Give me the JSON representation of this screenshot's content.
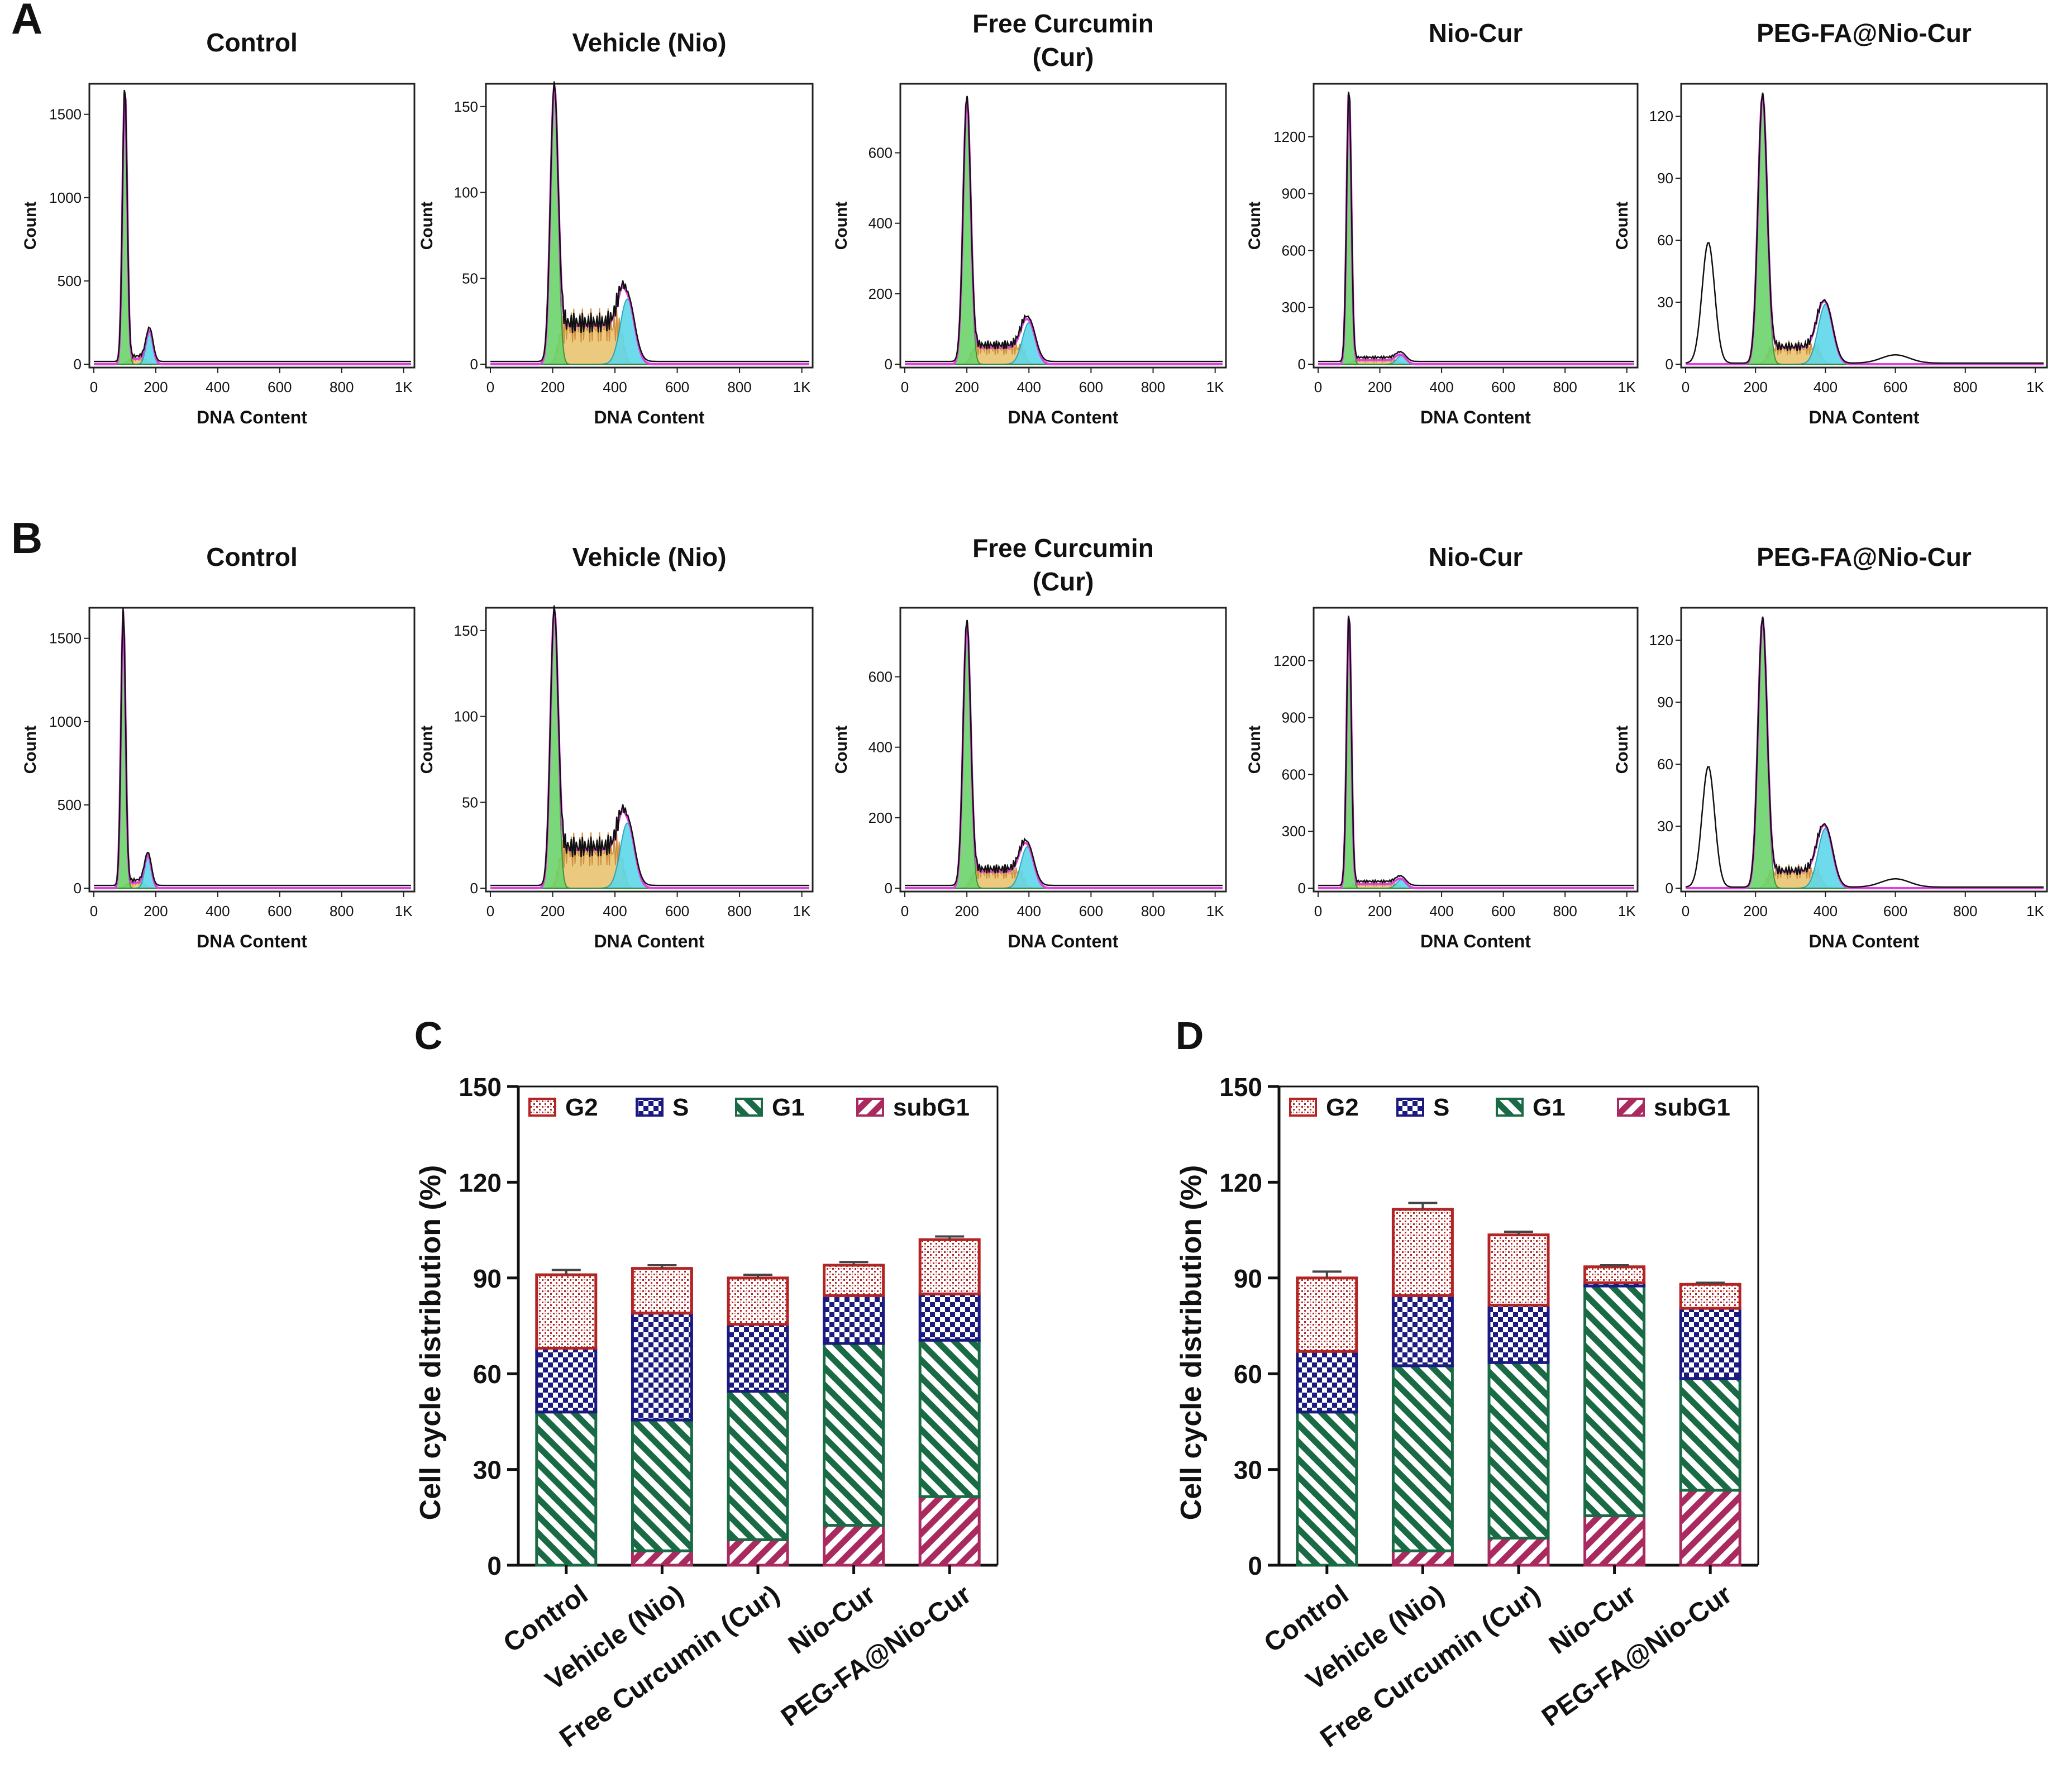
{
  "figure": {
    "panel_labels": [
      "A",
      "B",
      "C",
      "D"
    ]
  },
  "flow_rows": [
    {
      "label": "A",
      "panels": [
        {
          "title": [
            "Control"
          ],
          "yticks": [
            "0",
            "500",
            "1000",
            "1500"
          ],
          "ymax": 1650,
          "g1": 100,
          "g1h": 1660,
          "g2": 180,
          "g2h": 195,
          "s_level": 0.02,
          "sub": 0
        },
        {
          "title": [
            "Vehicle (Nio)"
          ],
          "yticks": [
            "0",
            "50",
            "100",
            "150"
          ],
          "ymax": 160,
          "g1": 205,
          "g1h": 160,
          "g2": 440,
          "g2h": 38,
          "s_level": 0.14,
          "sub": 0
        },
        {
          "title": [
            "Free Curcumin",
            "(Cur)"
          ],
          "yticks": [
            "0",
            "200",
            "400",
            "600"
          ],
          "ymax": 780,
          "g1": 200,
          "g1h": 750,
          "g2": 400,
          "g2h": 118,
          "s_level": 0.06,
          "sub": 0
        },
        {
          "title": [
            "Nio-Cur"
          ],
          "yticks": [
            "0",
            "300",
            "600",
            "900",
            "1200"
          ],
          "ymax": 1450,
          "g1": 100,
          "g1h": 1450,
          "g2": 270,
          "g2h": 45,
          "s_level": 0.015,
          "sub": 0
        },
        {
          "title": [
            "PEG-FA@Nio-Cur"
          ],
          "yticks": [
            "0",
            "30",
            "60",
            "90",
            "120"
          ],
          "ymax": 133,
          "g1": 220,
          "g1h": 130,
          "g2": 400,
          "g2h": 29,
          "s_level": 0.06,
          "sub": 1
        }
      ]
    },
    {
      "label": "B",
      "panels": [
        {
          "title": [
            "Control"
          ],
          "yticks": [
            "0",
            "500",
            "1000",
            "1500"
          ],
          "ymax": 1650,
          "g1": 95,
          "g1h": 1660,
          "g2": 175,
          "g2h": 190,
          "s_level": 0.02,
          "sub": 0
        },
        {
          "title": [
            "Vehicle (Nio)"
          ],
          "yticks": [
            "0",
            "50",
            "100",
            "150"
          ],
          "ymax": 160,
          "g1": 205,
          "g1h": 160,
          "g2": 440,
          "g2h": 38,
          "s_level": 0.14,
          "sub": 0
        },
        {
          "title": [
            "Free Curcumin",
            "(Cur)"
          ],
          "yticks": [
            "0",
            "200",
            "400",
            "600"
          ],
          "ymax": 780,
          "g1": 200,
          "g1h": 750,
          "g2": 395,
          "g2h": 118,
          "s_level": 0.06,
          "sub": 0
        },
        {
          "title": [
            "Nio-Cur"
          ],
          "yticks": [
            "0",
            "300",
            "600",
            "900",
            "1200"
          ],
          "ymax": 1450,
          "g1": 100,
          "g1h": 1450,
          "g2": 270,
          "g2h": 45,
          "s_level": 0.015,
          "sub": 0
        },
        {
          "title": [
            "PEG-FA@Nio-Cur"
          ],
          "yticks": [
            "0",
            "30",
            "60",
            "90",
            "120"
          ],
          "ymax": 133,
          "g1": 220,
          "g1h": 130,
          "g2": 400,
          "g2h": 29,
          "s_level": 0.06,
          "sub": 1
        }
      ]
    }
  ],
  "flow_axes": {
    "xlabel": "DNA Content",
    "ylabel": "Count",
    "xticks": [
      "0",
      "200",
      "400",
      "600",
      "800",
      "1K"
    ]
  },
  "colors": {
    "g1_fill": "#6cd36c",
    "g2_fill": "#5fd8ea",
    "s_fill": "#e8c16a",
    "fit_line": "#e040e0",
    "trace": "#111111",
    "G2": "#b32424",
    "S": "#1a1a80",
    "G1": "#1a6b45",
    "subG1": "#a82a5e"
  },
  "chart_data": [
    {
      "label": "C",
      "type": "bar",
      "stacked": true,
      "title": "",
      "xlabel": "",
      "ylabel": "Cell cycle distribution (%)",
      "ylim": [
        0,
        150
      ],
      "yticks": [
        0,
        30,
        60,
        90,
        120,
        150
      ],
      "categories": [
        "Control",
        "Vehicle (Nio)",
        "Free Curcumin (Cur)",
        "Nio-Cur",
        "PEG-FA@Nio-Cur"
      ],
      "legend": [
        "G2",
        "S",
        "G1",
        "subG1"
      ],
      "series": [
        {
          "name": "subG1",
          "values": [
            0,
            4.5,
            8,
            12.5,
            21.5
          ]
        },
        {
          "name": "G1",
          "values": [
            48,
            41,
            46.5,
            57,
            49
          ]
        },
        {
          "name": "S",
          "values": [
            20,
            33.5,
            21,
            15,
            14.5
          ]
        },
        {
          "name": "G2",
          "values": [
            23,
            14,
            14.5,
            9.5,
            17
          ]
        }
      ],
      "errors": [
        1.5,
        1,
        1,
        1,
        1
      ]
    },
    {
      "label": "D",
      "type": "bar",
      "stacked": true,
      "title": "",
      "xlabel": "",
      "ylabel": "Cell cycle distribution (%)",
      "ylim": [
        0,
        150
      ],
      "yticks": [
        0,
        30,
        60,
        90,
        120,
        150
      ],
      "categories": [
        "Control",
        "Vehicle (Nio)",
        "Free Curcumin (Cur)",
        "Nio-Cur",
        "PEG-FA@Nio-Cur"
      ],
      "legend": [
        "G2",
        "S",
        "G1",
        "subG1"
      ],
      "series": [
        {
          "name": "subG1",
          "values": [
            0,
            4.5,
            8.5,
            15.5,
            23.5
          ]
        },
        {
          "name": "G1",
          "values": [
            48,
            58,
            55,
            72,
            35
          ]
        },
        {
          "name": "S",
          "values": [
            19,
            22,
            18,
            1,
            22
          ]
        },
        {
          "name": "G2",
          "values": [
            23,
            27,
            22,
            5,
            7.5
          ]
        }
      ],
      "errors": [
        2,
        2,
        1,
        0.5,
        0.5
      ]
    }
  ]
}
